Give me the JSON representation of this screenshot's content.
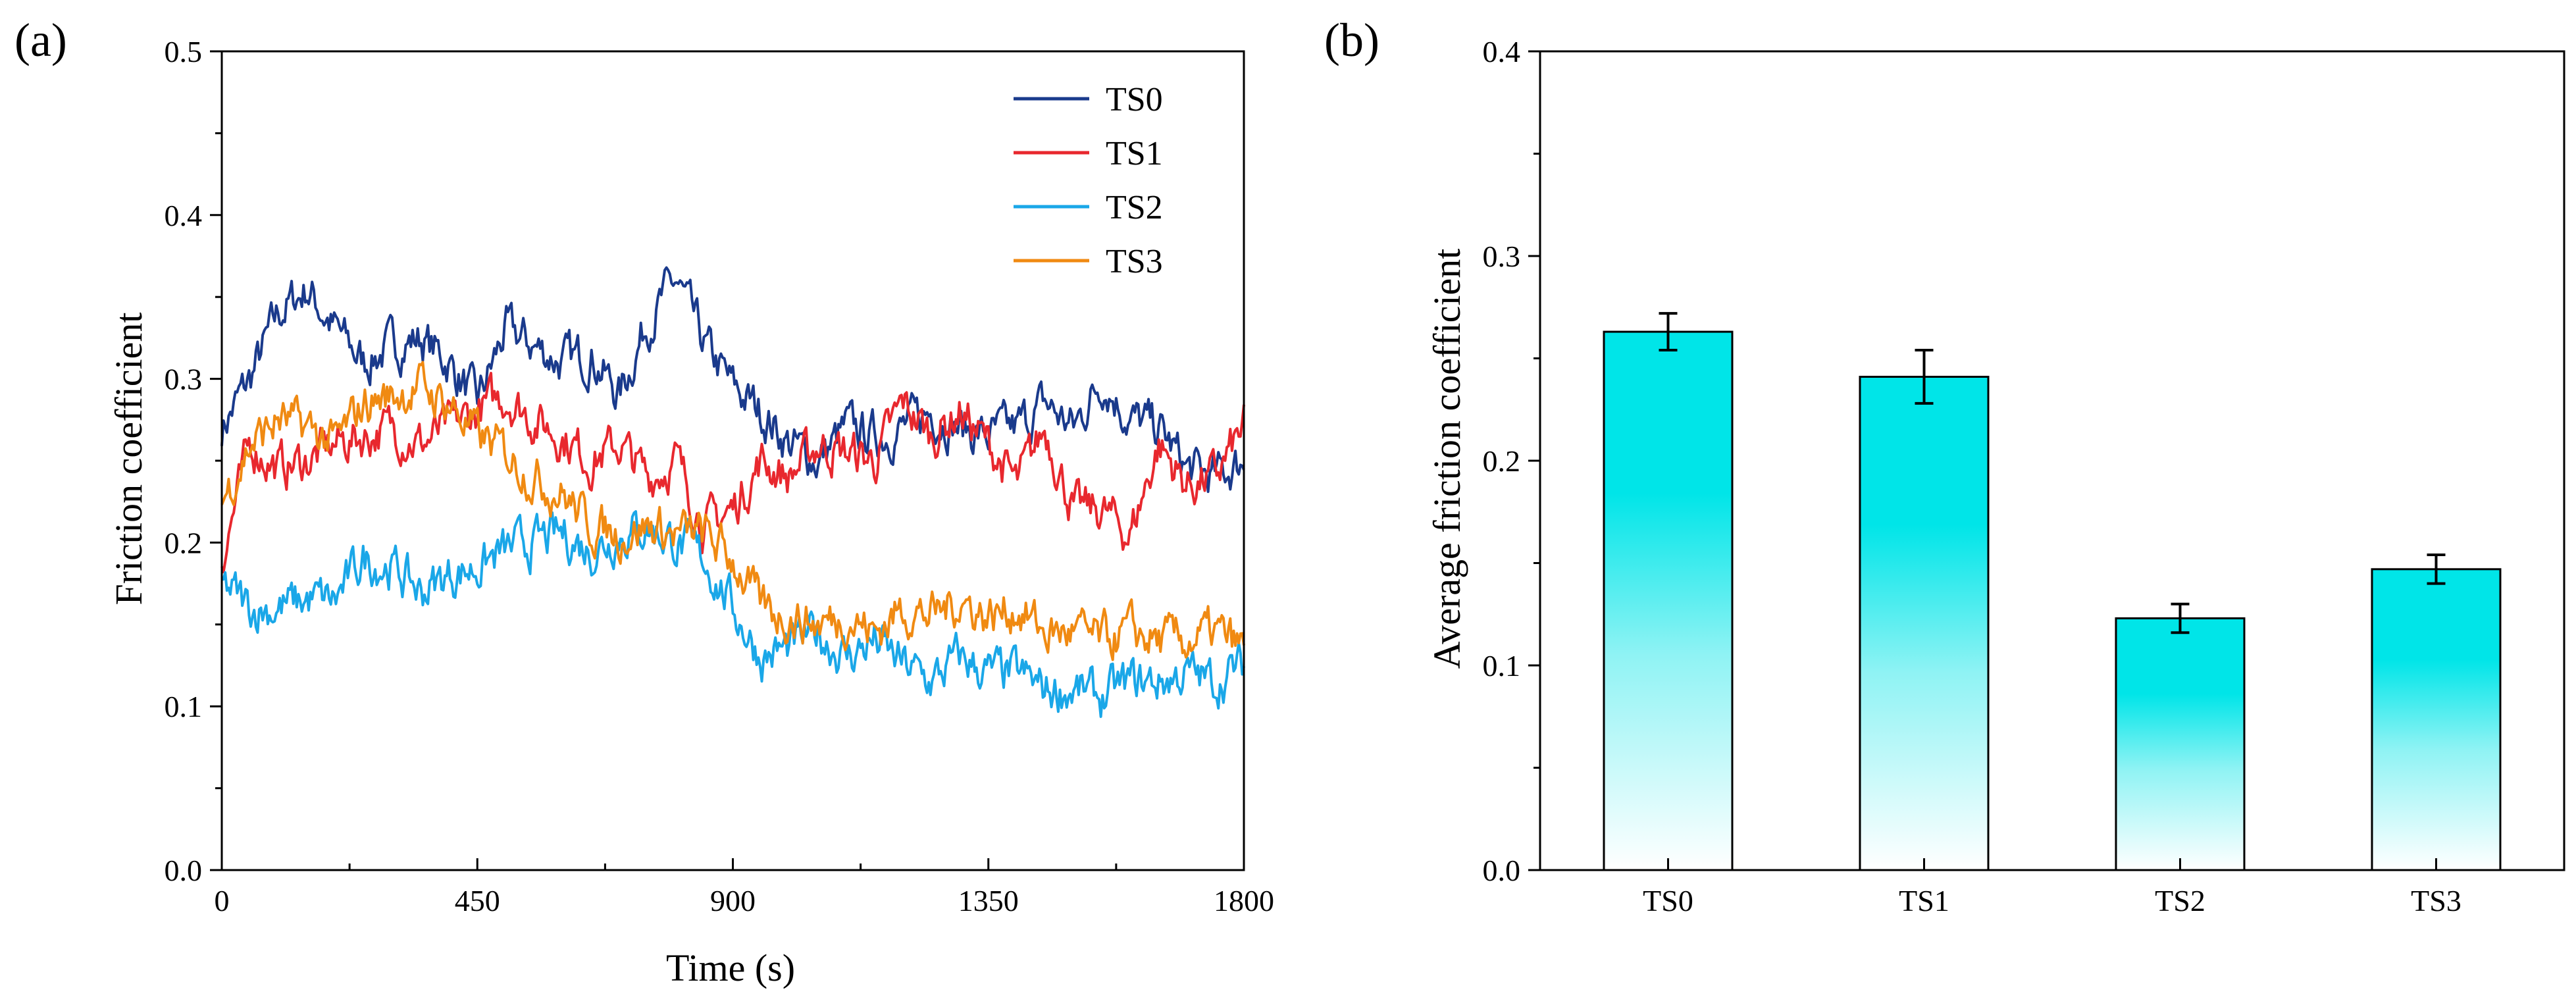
{
  "chart_data": [
    {
      "panel": "(a)",
      "type": "line",
      "xlabel": "Time (s)",
      "ylabel": "Friction coefficient",
      "xlim": [
        0,
        1800
      ],
      "ylim": [
        0,
        0.5
      ],
      "xticks": [
        0,
        450,
        900,
        1350,
        1800
      ],
      "xtick_labels": [
        "0",
        "450",
        "900",
        "1350",
        "1800"
      ],
      "yticks": [
        0.0,
        0.1,
        0.2,
        0.3,
        0.4,
        0.5
      ],
      "ytick_labels": [
        "0.0",
        "0.1",
        "0.2",
        "0.3",
        "0.4",
        "0.5"
      ],
      "legend_position": "top-right",
      "grid": false,
      "x": [
        0,
        50,
        100,
        150,
        200,
        250,
        300,
        350,
        400,
        450,
        500,
        550,
        600,
        650,
        700,
        750,
        800,
        850,
        900,
        950,
        1000,
        1050,
        1100,
        1150,
        1200,
        1250,
        1300,
        1350,
        1400,
        1450,
        1500,
        1550,
        1600,
        1650,
        1700,
        1750,
        1800
      ],
      "series": [
        {
          "name": "TS0",
          "color": "#1a3a8c",
          "values": [
            0.27,
            0.3,
            0.34,
            0.355,
            0.33,
            0.31,
            0.32,
            0.325,
            0.31,
            0.285,
            0.33,
            0.32,
            0.31,
            0.315,
            0.29,
            0.335,
            0.36,
            0.32,
            0.295,
            0.28,
            0.26,
            0.25,
            0.27,
            0.265,
            0.27,
            0.28,
            0.27,
            0.265,
            0.27,
            0.285,
            0.27,
            0.3,
            0.275,
            0.27,
            0.245,
            0.24,
            0.25
          ]
        },
        {
          "name": "TS1",
          "color": "#e8282e",
          "values": [
            0.19,
            0.26,
            0.245,
            0.25,
            0.26,
            0.265,
            0.27,
            0.26,
            0.27,
            0.28,
            0.29,
            0.275,
            0.265,
            0.25,
            0.26,
            0.24,
            0.25,
            0.21,
            0.22,
            0.25,
            0.24,
            0.26,
            0.255,
            0.25,
            0.285,
            0.265,
            0.28,
            0.26,
            0.235,
            0.27,
            0.22,
            0.22,
            0.205,
            0.26,
            0.235,
            0.24,
            0.27
          ]
        },
        {
          "name": "TS2",
          "color": "#1aa7e8",
          "values": [
            0.175,
            0.16,
            0.16,
            0.165,
            0.165,
            0.19,
            0.185,
            0.17,
            0.18,
            0.185,
            0.195,
            0.2,
            0.205,
            0.195,
            0.205,
            0.21,
            0.2,
            0.19,
            0.16,
            0.13,
            0.135,
            0.145,
            0.13,
            0.14,
            0.125,
            0.115,
            0.13,
            0.12,
            0.12,
            0.11,
            0.11,
            0.105,
            0.115,
            0.115,
            0.12,
            0.115,
            0.125
          ]
        },
        {
          "name": "TS3",
          "color": "#f08a12",
          "values": [
            0.225,
            0.26,
            0.275,
            0.27,
            0.26,
            0.285,
            0.29,
            0.295,
            0.285,
            0.265,
            0.255,
            0.24,
            0.23,
            0.21,
            0.205,
            0.21,
            0.205,
            0.205,
            0.19,
            0.16,
            0.155,
            0.15,
            0.155,
            0.145,
            0.16,
            0.155,
            0.165,
            0.155,
            0.16,
            0.145,
            0.145,
            0.14,
            0.145,
            0.14,
            0.14,
            0.145,
            0.135
          ]
        }
      ]
    },
    {
      "panel": "(b)",
      "type": "bar",
      "xlabel": "",
      "ylabel": "Average friction coefficient",
      "ylim": [
        0,
        0.4
      ],
      "yticks": [
        0.0,
        0.1,
        0.2,
        0.3,
        0.4
      ],
      "ytick_labels": [
        "0.0",
        "0.1",
        "0.2",
        "0.3",
        "0.4"
      ],
      "categories": [
        "TS0",
        "TS1",
        "TS2",
        "TS3"
      ],
      "values": [
        0.263,
        0.241,
        0.123,
        0.147
      ],
      "errors": [
        0.009,
        0.013,
        0.007,
        0.007
      ],
      "bar_color": "#00e5e8",
      "grid": false
    }
  ]
}
